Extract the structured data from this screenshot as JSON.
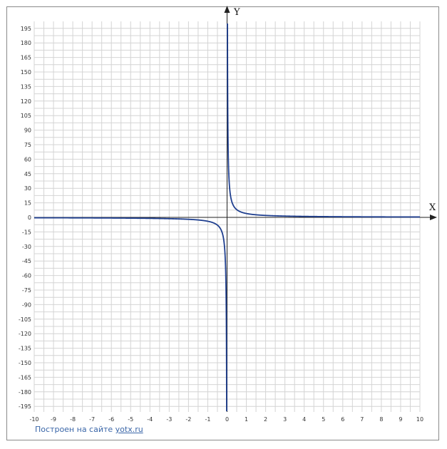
{
  "chart_data": {
    "type": "line",
    "function": "y = 4/x",
    "xlabel": "X",
    "ylabel": "Y",
    "xlim": [
      -10,
      10
    ],
    "ylim": [
      -200,
      210
    ],
    "x_ticks": [
      -10,
      -9,
      -8,
      -7,
      -6,
      -5,
      -4,
      -3,
      -2,
      -1,
      0,
      1,
      2,
      3,
      4,
      5,
      6,
      7,
      8,
      9,
      10
    ],
    "y_ticks": [
      -195,
      -180,
      -165,
      -150,
      -135,
      -120,
      -105,
      -90,
      -75,
      -60,
      -45,
      -30,
      -15,
      0,
      15,
      30,
      45,
      60,
      75,
      90,
      105,
      120,
      135,
      150,
      165,
      180,
      195
    ],
    "grid": true,
    "line_color": "#1f3f8f",
    "series": [
      {
        "name": "",
        "x": [
          -10,
          -9,
          -8,
          -7,
          -6,
          -5,
          -4,
          -3,
          -2,
          -1.5,
          -1,
          -0.75,
          -0.5,
          -0.3,
          -0.2,
          -0.1,
          -0.05,
          -0.03,
          -0.02
        ],
        "y": [
          -0.4,
          -0.44,
          -0.5,
          -0.57,
          -0.67,
          -0.8,
          -1,
          -1.33,
          -2,
          -2.67,
          -4,
          -5.33,
          -8,
          -13.3,
          -20,
          -40,
          -80,
          -133,
          -200
        ]
      },
      {
        "name": "",
        "x": [
          0.02,
          0.03,
          0.05,
          0.1,
          0.2,
          0.3,
          0.5,
          0.75,
          1,
          1.5,
          2,
          3,
          4,
          5,
          6,
          7,
          8,
          9,
          10
        ],
        "y": [
          200,
          133,
          80,
          40,
          20,
          13.3,
          8,
          5.33,
          4,
          2.67,
          2,
          1.33,
          1,
          0.8,
          0.67,
          0.57,
          0.5,
          0.44,
          0.4
        ]
      }
    ]
  },
  "footer": {
    "credit_prefix": "Построен на сайте",
    "credit_link": "yotx.ru"
  }
}
